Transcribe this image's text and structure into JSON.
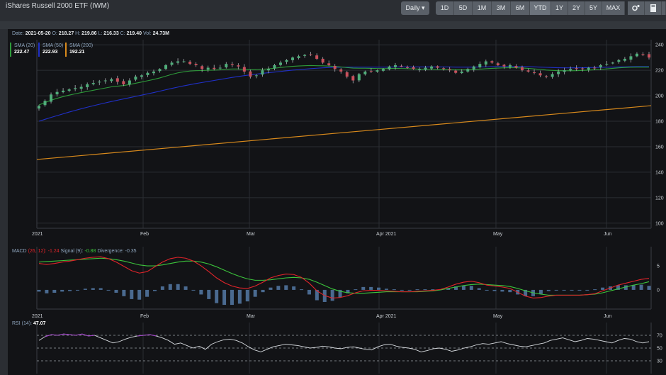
{
  "app": {
    "title": "iShares Russell 2000 ETF (IWM)"
  },
  "toolbar": {
    "interval_label": "Daily",
    "ranges": [
      "1D",
      "5D",
      "1M",
      "3M",
      "6M",
      "YTD",
      "1Y",
      "2Y",
      "5Y",
      "MAX"
    ],
    "active_range": "YTD",
    "icons": [
      "gear-icon",
      "calculator-icon"
    ]
  },
  "info": {
    "date_label": "Date:",
    "date": "2021-05-20",
    "open_label": "O:",
    "open": "218.27",
    "high_label": "H:",
    "high": "219.86",
    "low_label": "L:",
    "low": "216.33",
    "close_label": "C:",
    "close": "219.40",
    "vol_label": "Vol:",
    "vol": "24.73M"
  },
  "legend": [
    {
      "name": "SMA (20)",
      "value": "222.47",
      "color": "#2e9b3a"
    },
    {
      "name": "SMA (50)",
      "value": "222.93",
      "color": "#2030c8"
    },
    {
      "name": "SMA (200)",
      "value": "192.21",
      "color": "#d98a1c"
    }
  ],
  "macd": {
    "label": "MACD",
    "params": "(26, 12):",
    "value": "-1.24",
    "signal_label": "Signal (9):",
    "signal": "-0.88",
    "divergence_label": "Divergence:",
    "divergence": "-0.35",
    "macd_color": "#e0242a",
    "signal_color": "#3cc63c",
    "hist_color": "#4a6a90"
  },
  "rsi": {
    "label": "RSI (14):",
    "value": "47.07"
  },
  "chart_data": [
    {
      "type": "candlestick",
      "title": "",
      "x_ticks": [
        "2021",
        "Feb",
        "Mar",
        "Apr 2021",
        "May",
        "Jun"
      ],
      "y_ticks": [
        100,
        120,
        140,
        160,
        180,
        200,
        220,
        240
      ],
      "ylim": [
        96,
        244
      ],
      "grid": true,
      "closes": [
        192,
        196,
        201,
        203,
        204,
        205,
        206,
        207,
        209,
        210,
        211,
        212,
        213,
        211,
        209,
        212,
        215,
        216,
        218,
        219,
        221,
        224,
        226,
        227,
        227,
        225,
        224,
        221,
        222,
        221,
        222,
        225,
        224,
        223,
        219,
        215,
        216,
        220,
        221,
        224,
        226,
        228,
        230,
        231,
        232,
        232,
        229,
        226,
        224,
        221,
        219,
        215,
        212,
        217,
        219,
        219,
        220,
        221,
        223,
        224,
        223,
        222,
        221,
        221,
        222,
        223,
        222,
        221,
        220,
        218,
        219,
        221,
        223,
        225,
        227,
        226,
        224,
        223,
        224,
        222,
        220,
        219,
        218,
        216,
        215,
        217,
        219,
        220,
        221,
        221,
        221,
        222,
        222,
        224,
        225,
        226,
        228,
        229,
        231,
        233,
        232,
        230
      ],
      "sma20": [
        192.8,
        194.6,
        196.5,
        198,
        199.3,
        200.5,
        201.5,
        202.5,
        203.4,
        204.3,
        205.2,
        206.1,
        207,
        207.5,
        208,
        208.8,
        209.8,
        210.8,
        211.8,
        212.8,
        214,
        215.4,
        216.8,
        218,
        218.8,
        219.4,
        219.7,
        219.8,
        220,
        220.1,
        220.3,
        220.8,
        221,
        221,
        220.7,
        220.4,
        220.5,
        220.8,
        221.1,
        221.6,
        222.2,
        222.7,
        223.1,
        223.4,
        223.6,
        223.7,
        223.6,
        223.5,
        223.3,
        223,
        222.6,
        222.1,
        221.7,
        221.6,
        221.6,
        221.5,
        221.4,
        221.3,
        221.4,
        221.5,
        221.4,
        221.3,
        221.1,
        220.9,
        220.8,
        220.7,
        220.6,
        220.5,
        220.4,
        220.3,
        220.3,
        220.4,
        220.6,
        220.9,
        221.2,
        221.5,
        221.7,
        221.9,
        222,
        222,
        221.8,
        221.5,
        221.1,
        220.7,
        220.2,
        219.9,
        219.7,
        219.6,
        219.6,
        219.7,
        219.9,
        220.1,
        220.4,
        220.7,
        221.1,
        221.5,
        221.9,
        222.2,
        222.4,
        222.5,
        222.5,
        222.5
      ],
      "sma50": [
        180,
        181.5,
        183,
        184.4,
        185.8,
        187.2,
        188.5,
        189.8,
        191,
        192.2,
        193.3,
        194.4,
        195.5,
        196.5,
        197.5,
        198.5,
        199.5,
        200.5,
        201.5,
        202.5,
        203.6,
        204.7,
        205.8,
        206.8,
        207.8,
        208.7,
        209.6,
        210.4,
        211.2,
        212,
        212.8,
        213.6,
        214.4,
        215.1,
        215.8,
        216.4,
        217,
        217.6,
        218.1,
        218.6,
        219.1,
        219.6,
        220.1,
        220.5,
        220.9,
        221.3,
        221.6,
        221.9,
        222.1,
        222.3,
        222.4,
        222.5,
        222.5,
        222.5,
        222.5,
        222.5,
        222.5,
        222.5,
        222.5,
        222.6,
        222.6,
        222.6,
        222.6,
        222.6,
        222.6,
        222.6,
        222.6,
        222.6,
        222.6,
        222.5,
        222.5,
        222.5,
        222.5,
        222.6,
        222.7,
        222.8,
        222.9,
        223,
        223,
        223,
        222.9,
        222.8,
        222.7,
        222.5,
        222.3,
        222.1,
        222,
        221.9,
        221.9,
        221.9,
        222,
        222.1,
        222.2,
        222.3,
        222.4,
        222.5,
        222.6,
        222.7,
        222.8,
        222.9,
        222.9,
        222.9
      ],
      "sma200": [
        150,
        192.21
      ],
      "macd_line": [
        5.5,
        5.3,
        5.5,
        5.8,
        6.0,
        6.3,
        6.6,
        6.8,
        6.9,
        6.5,
        5.8,
        4.9,
        4.0,
        3.5,
        3.8,
        4.8,
        5.8,
        6.5,
        6.8,
        6.6,
        6.0,
        5.0,
        3.8,
        2.5,
        1.5,
        0.8,
        0.4,
        0.3,
        0.8,
        1.6,
        2.5,
        3.0,
        3.3,
        3.2,
        2.6,
        1.4,
        -0.2,
        -1.2,
        -1.7,
        -1.6,
        -1.2,
        -0.6,
        -0.2,
        -0.1,
        -0.1,
        -0.2,
        -0.3,
        -0.4,
        -0.4,
        -0.3,
        -0.2,
        -0.1,
        0.1,
        0.6,
        1.2,
        1.6,
        1.8,
        1.5,
        1.0,
        0.8,
        0.6,
        0.3,
        -0.5,
        -1.3,
        -1.7,
        -1.6,
        -1.3,
        -1.1,
        -1.1,
        -1.1,
        -1.1,
        -1.0,
        -0.8,
        -0.2,
        0.4,
        1.0,
        1.4,
        1.8,
        2.2,
        2.4
      ],
      "signal_line": [
        5.8,
        5.9,
        6.0,
        6.1,
        6.2,
        6.3,
        6.4,
        6.5,
        6.6,
        6.5,
        6.3,
        6.0,
        5.6,
        5.2,
        5.0,
        5.0,
        5.2,
        5.5,
        5.8,
        6.0,
        6.0,
        5.8,
        5.4,
        4.8,
        4.1,
        3.4,
        2.8,
        2.3,
        2.0,
        2.0,
        2.1,
        2.3,
        2.5,
        2.6,
        2.5,
        2.2,
        1.6,
        0.9,
        0.2,
        -0.3,
        -0.6,
        -0.7,
        -0.7,
        -0.6,
        -0.5,
        -0.4,
        -0.4,
        -0.4,
        -0.4,
        -0.4,
        -0.3,
        -0.2,
        0.0,
        0.3,
        0.6,
        0.9,
        1.1,
        1.2,
        1.1,
        1.0,
        0.9,
        0.7,
        0.3,
        -0.2,
        -0.6,
        -0.9,
        -1.1,
        -1.1,
        -1.1,
        -1.1,
        -1.1,
        -1.0,
        -0.9,
        -0.6,
        -0.2,
        0.2,
        0.6,
        1.0,
        1.3,
        1.7
      ],
      "macd_ylim": [
        -4,
        9
      ],
      "macd_ticks": [
        5,
        0
      ],
      "rsi_values": [
        62,
        68,
        71,
        70,
        72,
        71,
        70,
        72,
        69,
        70,
        66,
        62,
        58,
        60,
        64,
        67,
        69,
        70,
        71,
        69,
        66,
        62,
        56,
        58,
        54,
        50,
        53,
        48,
        56,
        60,
        63,
        64,
        62,
        58,
        52,
        47,
        44,
        48,
        52,
        54,
        56,
        55,
        54,
        52,
        50,
        51,
        53,
        52,
        50,
        49,
        51,
        52,
        50,
        48,
        47,
        52,
        55,
        56,
        53,
        51,
        50,
        48,
        44,
        46,
        49,
        50,
        48,
        45,
        47,
        50,
        52,
        55,
        57,
        56,
        58,
        60,
        57,
        55,
        53,
        52,
        54,
        56,
        58,
        62,
        64,
        66,
        63,
        60,
        62,
        65,
        64,
        62,
        60,
        58,
        62,
        65,
        64,
        60,
        58,
        60
      ],
      "rsi_ticks": [
        70,
        50,
        30
      ],
      "rsi_ylim": [
        10,
        90
      ]
    }
  ]
}
